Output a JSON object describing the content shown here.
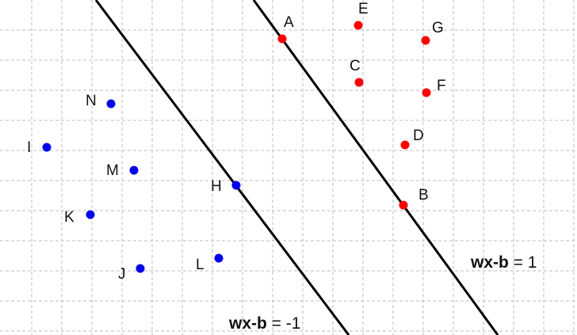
{
  "colors": {
    "class_positive": "#ff0000",
    "class_negative": "#0000ee",
    "lines": "#000000",
    "grid": "#bdbdbd"
  },
  "equations": {
    "upper": {
      "bold": "wx-b",
      "rest": " = 1"
    },
    "lower": {
      "bold": "wx-b",
      "rest": " = -1"
    }
  },
  "points": {
    "red": [
      {
        "label": "A"
      },
      {
        "label": "E"
      },
      {
        "label": "G"
      },
      {
        "label": "C"
      },
      {
        "label": "F"
      },
      {
        "label": "D"
      },
      {
        "label": "B"
      }
    ],
    "blue": [
      {
        "label": "N"
      },
      {
        "label": "I"
      },
      {
        "label": "M"
      },
      {
        "label": "H"
      },
      {
        "label": "K"
      },
      {
        "label": "J"
      },
      {
        "label": "L"
      }
    ]
  }
}
